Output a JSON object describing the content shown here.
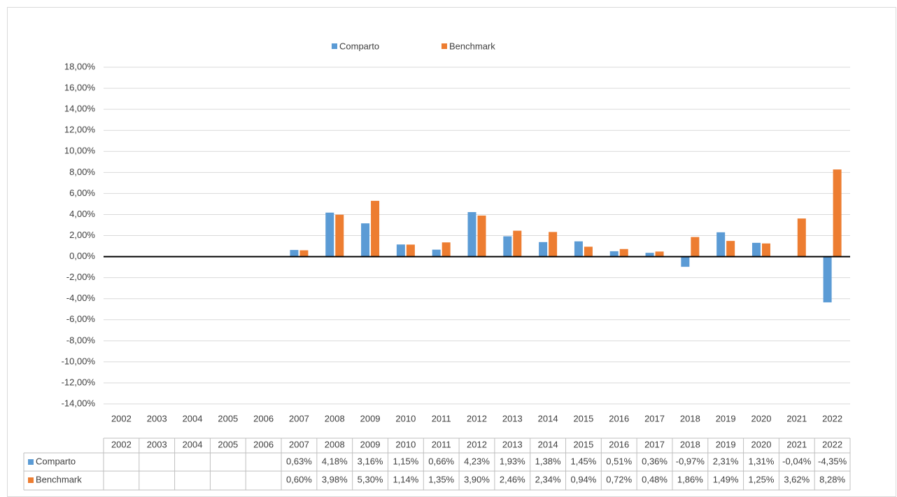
{
  "chart_data": {
    "type": "bar",
    "categories": [
      "2002",
      "2003",
      "2004",
      "2005",
      "2006",
      "2007",
      "2008",
      "2009",
      "2010",
      "2011",
      "2012",
      "2013",
      "2014",
      "2015",
      "2016",
      "2017",
      "2018",
      "2019",
      "2020",
      "2021",
      "2022"
    ],
    "series": [
      {
        "name": "Comparto",
        "color": "#5b9bd5",
        "values": [
          null,
          null,
          null,
          null,
          null,
          0.63,
          4.18,
          3.16,
          1.15,
          0.66,
          4.23,
          1.93,
          1.38,
          1.45,
          0.51,
          0.36,
          -0.97,
          2.31,
          1.31,
          -0.04,
          -4.35
        ],
        "value_labels": [
          null,
          null,
          null,
          null,
          null,
          "0,63%",
          "4,18%",
          "3,16%",
          "1,15%",
          "0,66%",
          "4,23%",
          "1,93%",
          "1,38%",
          "1,45%",
          "0,51%",
          "0,36%",
          "-0,97%",
          "2,31%",
          "1,31%",
          "-0,04%",
          "-4,35%"
        ]
      },
      {
        "name": "Benchmark",
        "color": "#ed7d31",
        "values": [
          null,
          null,
          null,
          null,
          null,
          0.6,
          3.98,
          5.3,
          1.14,
          1.35,
          3.9,
          2.46,
          2.34,
          0.94,
          0.72,
          0.48,
          1.86,
          1.49,
          1.25,
          3.62,
          8.28
        ],
        "value_labels": [
          null,
          null,
          null,
          null,
          null,
          "0,60%",
          "3,98%",
          "5,30%",
          "1,14%",
          "1,35%",
          "3,90%",
          "2,46%",
          "2,34%",
          "0,94%",
          "0,72%",
          "0,48%",
          "1,86%",
          "1,49%",
          "1,25%",
          "3,62%",
          "8,28%"
        ]
      }
    ],
    "ylim": [
      -14,
      18
    ],
    "yticks": [
      {
        "value": -14,
        "label": "-14,00%"
      },
      {
        "value": -12,
        "label": "-12,00%"
      },
      {
        "value": -10,
        "label": "-10,00%"
      },
      {
        "value": -8,
        "label": "-8,00%"
      },
      {
        "value": -6,
        "label": "-6,00%"
      },
      {
        "value": -4,
        "label": "-4,00%"
      },
      {
        "value": -2,
        "label": "-2,00%"
      },
      {
        "value": 0,
        "label": "0,00%"
      },
      {
        "value": 2,
        "label": "2,00%"
      },
      {
        "value": 4,
        "label": "4,00%"
      },
      {
        "value": 6,
        "label": "6,00%"
      },
      {
        "value": 8,
        "label": "8,00%"
      },
      {
        "value": 10,
        "label": "10,00%"
      },
      {
        "value": 12,
        "label": "12,00%"
      },
      {
        "value": 14,
        "label": "14,00%"
      },
      {
        "value": 16,
        "label": "16,00%"
      },
      {
        "value": 18,
        "label": "18,00%"
      }
    ],
    "grid": true,
    "legend": "top",
    "data_table": true
  }
}
